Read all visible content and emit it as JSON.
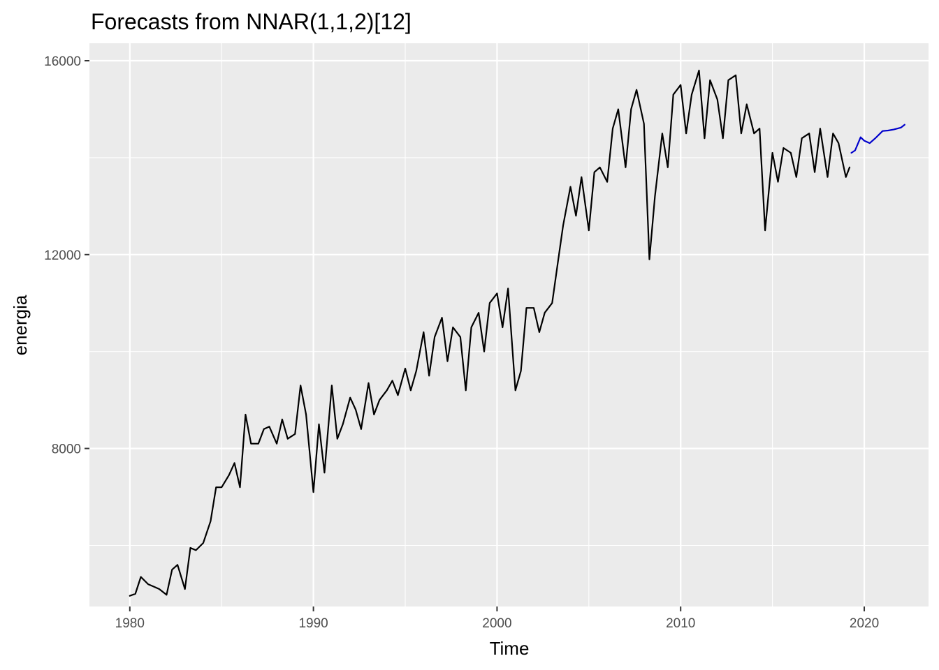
{
  "chart_data": {
    "type": "line",
    "title": "Forecasts from NNAR(1,1,2)[12]",
    "xlabel": "Time",
    "ylabel": "energia",
    "xlim": [
      1977.8,
      2023.5
    ],
    "ylim": [
      4740,
      16360
    ],
    "x_ticks": [
      1980,
      1990,
      2000,
      2010,
      2020
    ],
    "x_minor_ticks": [
      1985,
      1995,
      2005,
      2015
    ],
    "y_ticks": [
      8000,
      12000,
      16000
    ],
    "y_minor_ticks": [
      6000,
      10000,
      14000
    ],
    "grid": true,
    "colors": {
      "panel_background": "#ebebeb",
      "grid": "#ffffff",
      "observed": "#000000",
      "forecast": "#0000cc"
    },
    "series": [
      {
        "role": "observed",
        "x": [
          1980.0,
          1980.3,
          1980.6,
          1981.0,
          1981.3,
          1981.6,
          1982.0,
          1982.3,
          1982.6,
          1983.0,
          1983.3,
          1983.6,
          1984.0,
          1984.4,
          1984.7,
          1985.0,
          1985.4,
          1985.7,
          1986.0,
          1986.3,
          1986.6,
          1987.0,
          1987.3,
          1987.6,
          1988.0,
          1988.3,
          1988.6,
          1989.0,
          1989.3,
          1989.6,
          1990.0,
          1990.3,
          1990.6,
          1991.0,
          1991.3,
          1991.6,
          1992.0,
          1992.3,
          1992.6,
          1993.0,
          1993.3,
          1993.6,
          1994.0,
          1994.3,
          1994.6,
          1995.0,
          1995.3,
          1995.6,
          1996.0,
          1996.3,
          1996.6,
          1997.0,
          1997.3,
          1997.6,
          1998.0,
          1998.3,
          1998.6,
          1999.0,
          1999.3,
          1999.6,
          2000.0,
          2000.3,
          2000.6,
          2001.0,
          2001.3,
          2001.6,
          2002.0,
          2002.3,
          2002.6,
          2003.0,
          2003.3,
          2003.6,
          2004.0,
          2004.3,
          2004.6,
          2005.0,
          2005.3,
          2005.6,
          2006.0,
          2006.3,
          2006.6,
          2007.0,
          2007.3,
          2007.6,
          2008.0,
          2008.3,
          2008.6,
          2009.0,
          2009.3,
          2009.6,
          2010.0,
          2010.3,
          2010.6,
          2011.0,
          2011.3,
          2011.6,
          2012.0,
          2012.3,
          2012.6,
          2013.0,
          2013.3,
          2013.6,
          2014.0,
          2014.3,
          2014.6,
          2015.0,
          2015.3,
          2015.6,
          2016.0,
          2016.3,
          2016.6,
          2017.0,
          2017.3,
          2017.6,
          2018.0,
          2018.3,
          2018.6,
          2019.0,
          2019.2
        ],
        "values": [
          4960,
          5000,
          5350,
          5200,
          5150,
          5100,
          4980,
          5500,
          5600,
          5100,
          5950,
          5900,
          6050,
          6500,
          7200,
          7200,
          7450,
          7700,
          7200,
          8700,
          8100,
          8100,
          8400,
          8450,
          8100,
          8600,
          8200,
          8300,
          9300,
          8700,
          7100,
          8500,
          7500,
          9300,
          8200,
          8500,
          9050,
          8800,
          8400,
          9350,
          8700,
          9000,
          9200,
          9400,
          9100,
          9650,
          9200,
          9600,
          10400,
          9500,
          10300,
          10700,
          9800,
          10500,
          10300,
          9200,
          10500,
          10800,
          10000,
          11000,
          11200,
          10500,
          11300,
          9200,
          9600,
          10900,
          10900,
          10400,
          10800,
          11000,
          11800,
          12600,
          13400,
          12800,
          13600,
          12500,
          13700,
          13800,
          13500,
          14600,
          15000,
          13800,
          15000,
          15400,
          14700,
          11900,
          13200,
          14500,
          13800,
          15300,
          15500,
          14500,
          15300,
          15800,
          14400,
          15600,
          15200,
          14400,
          15600,
          15700,
          14500,
          15100,
          14500,
          14600,
          12500,
          14100,
          13500,
          14200,
          14100,
          13600,
          14400,
          14500,
          13700,
          14600,
          13600,
          14500,
          14300,
          13600,
          13800
        ]
      },
      {
        "role": "forecast",
        "x": [
          2019.3,
          2019.5,
          2019.8,
          2020.0,
          2020.3,
          2020.6,
          2021.0,
          2021.3,
          2021.6,
          2022.0,
          2022.2
        ],
        "values": [
          14100,
          14150,
          14420,
          14350,
          14300,
          14400,
          14550,
          14560,
          14580,
          14620,
          14680
        ]
      }
    ]
  }
}
